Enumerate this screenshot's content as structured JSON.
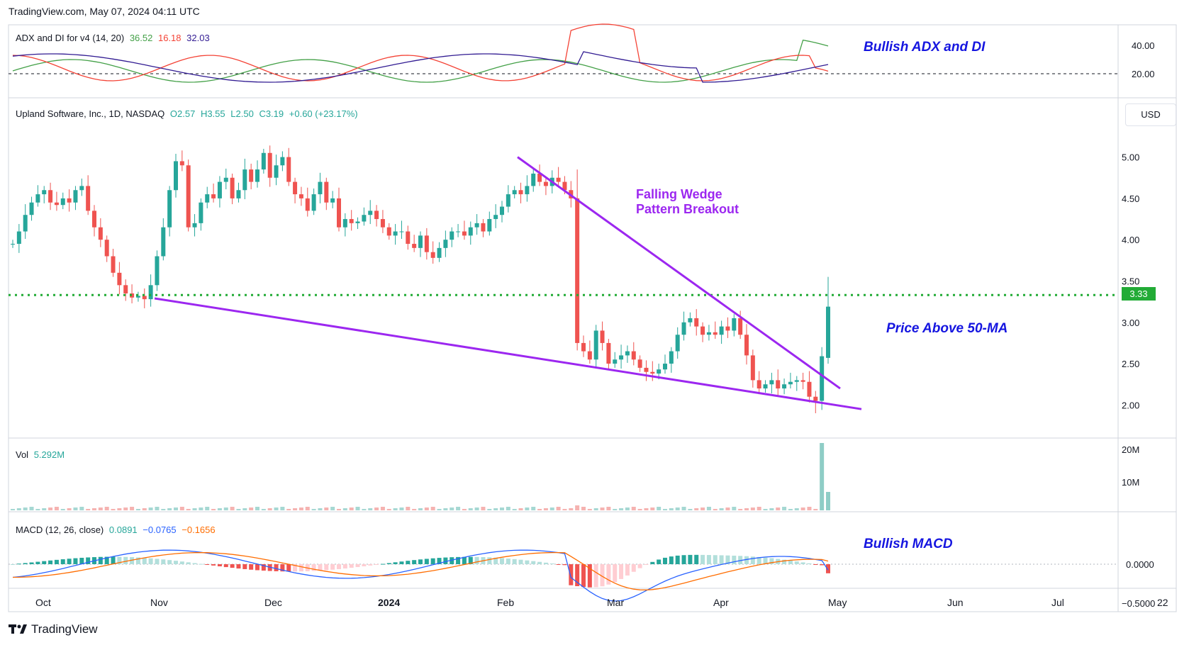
{
  "watermark": "TradingView.com, May 07, 2024 04:11 UTC",
  "brand": "TradingView",
  "currency_button": "USD",
  "price_marker": "3.33",
  "legends": {
    "adx": {
      "name": "ADX and DI for v4 (14, 20)",
      "v1": "36.52",
      "v2": "16.18",
      "v3": "32.03"
    },
    "main": {
      "name": "Upland Software, Inc., 1D, NASDAQ",
      "o": "O2.57",
      "h": "H3.55",
      "l": "L2.50",
      "c": "C3.19",
      "chg": "+0.60 (+23.17%)"
    },
    "vol": {
      "name": "Vol",
      "value": "5.292M"
    },
    "macd": {
      "name": "MACD (12, 26, close)",
      "v1": "0.0891",
      "v2": "−0.0765",
      "v3": "−0.1656"
    }
  },
  "annotations": {
    "adx": "Bullish ADX and DI",
    "wedge_line1": "Falling Wedge",
    "wedge_line2": "Pattern Breakout",
    "ma": "Price Above 50-MA",
    "macd": "Bullish MACD"
  },
  "colors": {
    "up": "#26a69a",
    "down": "#ef5350",
    "wedge": "#9c27f0",
    "ma_level": "#22ab36",
    "annotation": "#1515e0",
    "di_plus": "#43a047",
    "di_minus": "#f44336",
    "adx": "#311b92",
    "macd": "#2962ff",
    "signal": "#ff6d00"
  },
  "chart_data": [
    {
      "type": "candlestick",
      "title": "Upland Software, Inc., 1D, NASDAQ",
      "ylim": [
        1.6,
        5.7
      ],
      "y_ticks": [
        "5.00",
        "4.50",
        "4.00",
        "3.50",
        "3.00",
        "2.50",
        "2.00"
      ],
      "x_ticks": [
        "Oct",
        "Nov",
        "Dec",
        "2024",
        "Feb",
        "Mar",
        "Apr",
        "May",
        "Jun",
        "Jul",
        "22"
      ],
      "horizontal_level": 3.33,
      "closes": [
        3.95,
        4.1,
        4.3,
        4.45,
        4.55,
        4.6,
        4.45,
        4.42,
        4.5,
        4.45,
        4.6,
        4.65,
        4.35,
        4.15,
        4.0,
        3.8,
        3.6,
        3.45,
        3.35,
        3.3,
        3.32,
        3.28,
        3.45,
        3.8,
        4.15,
        4.6,
        4.95,
        4.9,
        4.15,
        4.2,
        4.45,
        4.55,
        4.5,
        4.7,
        4.75,
        4.5,
        4.6,
        4.85,
        4.7,
        4.85,
        5.05,
        4.75,
        4.9,
        5.0,
        4.7,
        4.55,
        4.5,
        4.35,
        4.55,
        4.7,
        4.45,
        4.5,
        4.15,
        4.25,
        4.2,
        4.22,
        4.3,
        4.35,
        4.25,
        4.15,
        4.05,
        4.1,
        4.1,
        3.95,
        3.9,
        4.05,
        3.85,
        3.78,
        3.9,
        4.0,
        4.1,
        4.1,
        4.05,
        4.15,
        4.2,
        4.1,
        4.25,
        4.3,
        4.4,
        4.55,
        4.6,
        4.55,
        4.65,
        4.8,
        4.7,
        4.65,
        4.75,
        4.7,
        4.6,
        4.5,
        2.75,
        2.65,
        2.55,
        2.9,
        2.75,
        2.5,
        2.55,
        2.6,
        2.65,
        2.55,
        2.45,
        2.4,
        2.38,
        2.43,
        2.5,
        2.65,
        2.85,
        3.0,
        3.05,
        2.95,
        2.85,
        2.88,
        2.85,
        2.95,
        2.9,
        3.05,
        2.85,
        2.6,
        2.3,
        2.2,
        2.25,
        2.3,
        2.2,
        2.25,
        2.28,
        2.3,
        2.28,
        2.1,
        2.05,
        2.59,
        3.19
      ],
      "last": {
        "open": 2.57,
        "high": 3.55,
        "low": 2.5,
        "close": 3.19,
        "change": "+0.60 (+23.17%)"
      }
    },
    {
      "type": "bar",
      "title": "Vol",
      "unit": "shares",
      "y_ticks": [
        "20M",
        "10M"
      ],
      "note": "volume small until two final spikes",
      "values_last_two": [
        20000000,
        5292000
      ]
    },
    {
      "type": "line",
      "title": "ADX and DI for v4 (14, 20)",
      "y_ticks": [
        "40.00",
        "20.00"
      ],
      "reference_level": 20,
      "series": [
        {
          "name": "",
          "last": 36.52
        },
        {
          "name": "",
          "last": 16.18
        },
        {
          "name": "",
          "last": 32.03
        }
      ]
    },
    {
      "type": "line",
      "title": "MACD (12, 26, close)",
      "y_ticks": [
        "0.0000",
        "−0.5000"
      ],
      "series": [
        {
          "name": "",
          "last": 0.0891
        },
        {
          "name": "",
          "last": -0.0765
        },
        {
          "name": "",
          "last": -0.1656
        }
      ]
    }
  ]
}
